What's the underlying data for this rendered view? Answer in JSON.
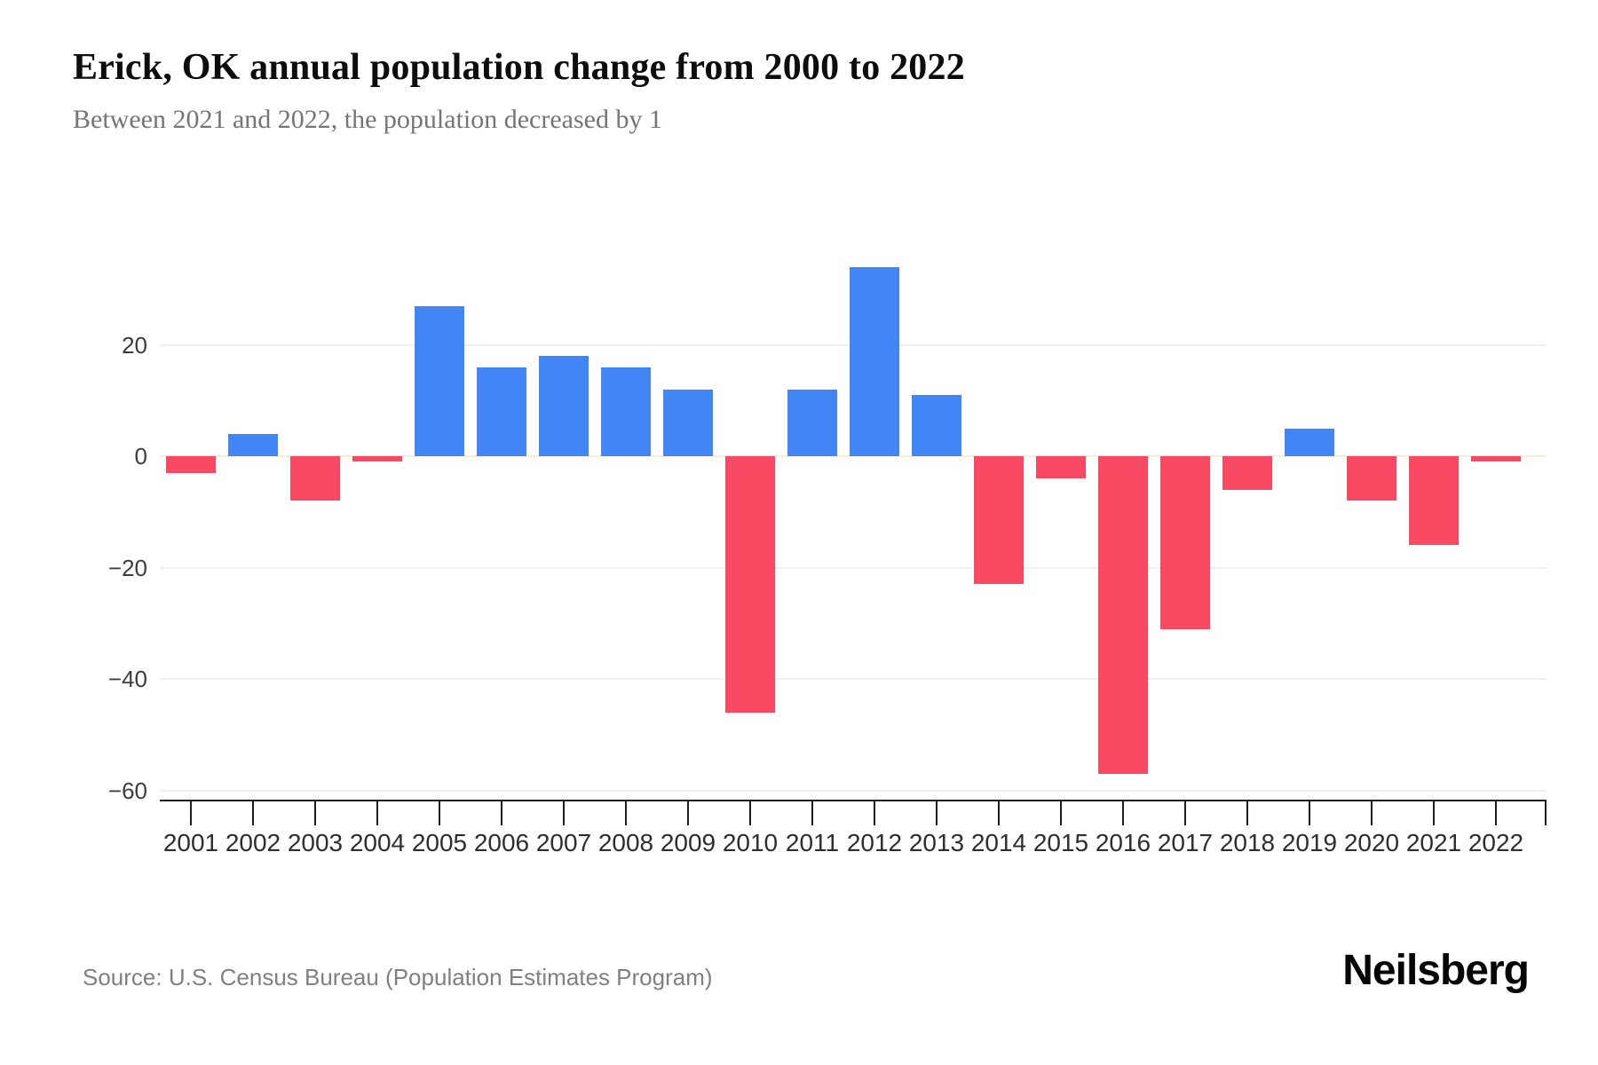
{
  "header": {
    "title": "Erick, OK annual population change from 2000 to 2022",
    "subtitle": "Between 2021 and 2022, the population decreased by 1"
  },
  "footer": {
    "source": "Source: U.S. Census Bureau (Population Estimates Program)",
    "brand": "Neilsberg"
  },
  "colors": {
    "positive_bar": "#4285F4",
    "negative_bar": "#FA4A63",
    "gridline": "#F0F0F0",
    "zero_gridline": "#F6EFD6",
    "axis_line": "#1F1F1F",
    "title_text": "#0D0D0D",
    "subtitle_text": "#757575",
    "axis_label_text": "#2E2E2E",
    "source_text": "#808080"
  },
  "chart_data": {
    "type": "bar",
    "title": "Erick, OK annual population change from 2000 to 2022",
    "subtitle": "Between 2021 and 2022, the population decreased by 1",
    "categories": [
      "2001",
      "2002",
      "2003",
      "2004",
      "2005",
      "2006",
      "2007",
      "2008",
      "2009",
      "2010",
      "2011",
      "2012",
      "2013",
      "2014",
      "2015",
      "2016",
      "2017",
      "2018",
      "2019",
      "2020",
      "2021",
      "2022"
    ],
    "values": [
      -3,
      4,
      -8,
      -1,
      27,
      16,
      18,
      16,
      12,
      -46,
      12,
      34,
      11,
      -23,
      -4,
      -57,
      -31,
      -6,
      5,
      -8,
      -16,
      -1
    ],
    "xlabel": "",
    "ylabel": "",
    "ylim": [
      -62,
      48
    ],
    "grid": true,
    "legend": false,
    "yticks": [
      {
        "v": 20,
        "label": "20"
      },
      {
        "v": 0,
        "label": "0"
      },
      {
        "v": -20,
        "label": "−20"
      },
      {
        "v": -40,
        "label": "−40"
      },
      {
        "v": -60,
        "label": "−60"
      }
    ],
    "positive_color": "#4285F4",
    "negative_color": "#FA4A63"
  }
}
